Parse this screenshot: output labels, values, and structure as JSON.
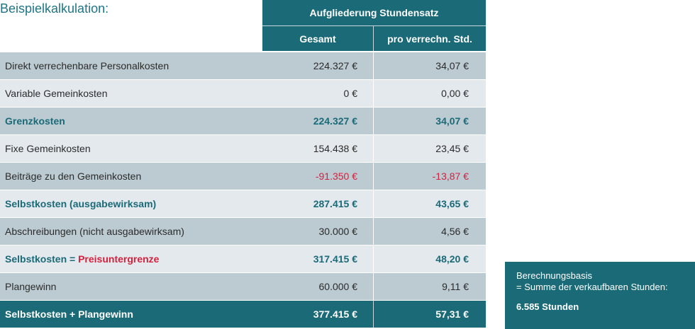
{
  "title": "Beispielkalkulation:",
  "header": {
    "group": "Aufgliederung Stundensatz",
    "col_total": "Gesamt",
    "col_per_hour": "pro verrechn. Std."
  },
  "rows": [
    {
      "label": "Direkt verrechenbare Personalkosten",
      "total": "224.327 €",
      "per_hour": "34,07 €"
    },
    {
      "label": "Variable Gemeinkosten",
      "total": "0 €",
      "per_hour": "0,00 €"
    },
    {
      "label": "Grenzkosten",
      "total": "224.327 €",
      "per_hour": "34,07 €"
    },
    {
      "label": "Fixe Gemeinkosten",
      "total": "154.438 €",
      "per_hour": "23,45 €"
    },
    {
      "label": "Beiträge zu den Gemeinkosten",
      "total": "-91.350 €",
      "per_hour": "-13,87 €"
    },
    {
      "label": "Selbstkosten (ausgabewirksam)",
      "total": "287.415 €",
      "per_hour": "43,65 €"
    },
    {
      "label": "Abschreibungen (nicht ausgabewirksam)",
      "total": "30.000 €",
      "per_hour": "4,56 €"
    },
    {
      "label_part1": "Selbstkosten = ",
      "label_part2": "Preisuntergrenze",
      "total": "317.415 €",
      "per_hour": "48,20 €"
    },
    {
      "label": "Plangewinn",
      "total": "60.000 €",
      "per_hour": "9,11 €"
    },
    {
      "label": "Selbstkosten + Plangewinn",
      "total": "377.415 €",
      "per_hour": "57,31 €"
    }
  ],
  "info": {
    "line1": "Berechnungsbasis",
    "line2": "= Summe der verkaufbaren Stunden:",
    "value": "6.585 Stunden"
  },
  "colors": {
    "teal": "#1b6a78",
    "red": "#d4213d",
    "row_dark": "#bccbd2",
    "row_light": "#e4e9ee"
  }
}
